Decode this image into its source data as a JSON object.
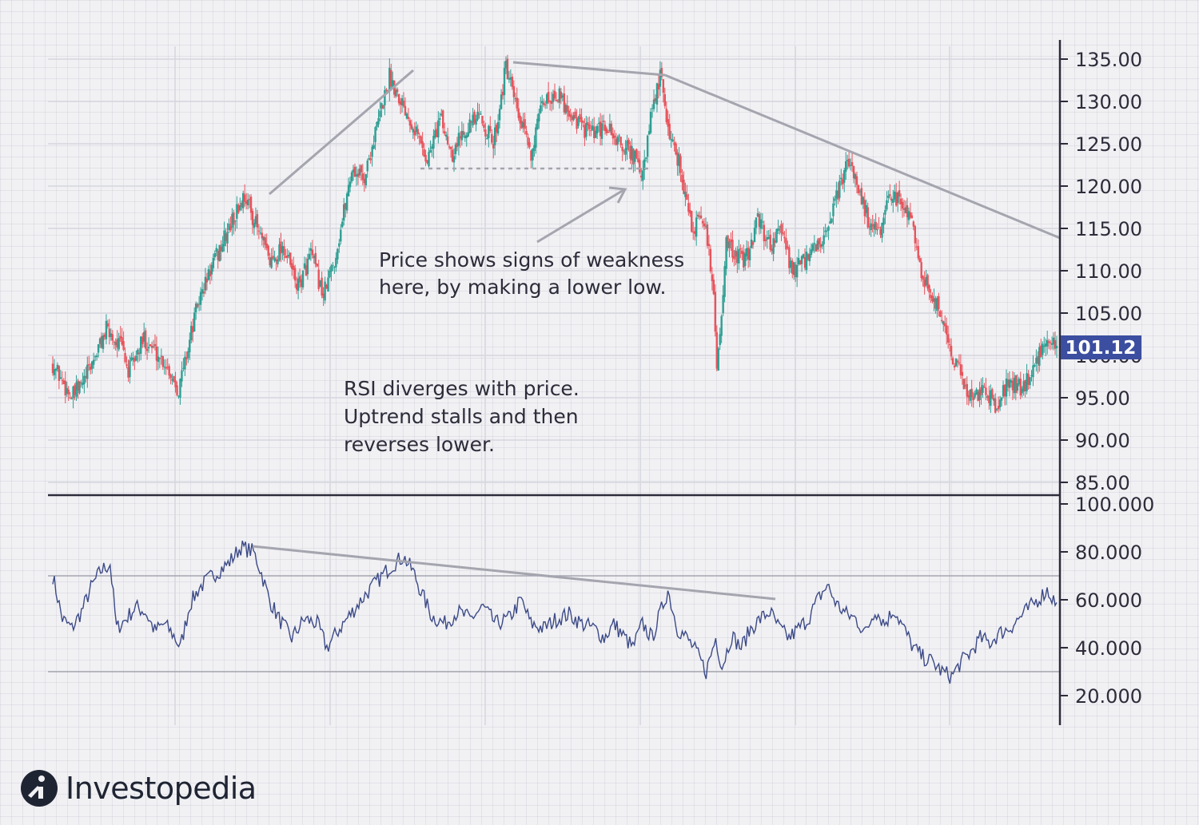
{
  "chart_data": [
    {
      "type": "candlestick",
      "panel": "price",
      "y_ticks": [
        "135.00",
        "130.00",
        "125.00",
        "120.00",
        "115.00",
        "110.00",
        "105.00",
        "100.00",
        "95.00",
        "90.00",
        "85.00"
      ],
      "ylim": [
        83,
        137
      ],
      "last_price_label": "101.12",
      "last_price": 101.12,
      "grid": true,
      "up_color": "#2e9e93",
      "down_color": "#e8535b",
      "series_points": [
        [
          0,
          99
        ],
        [
          12,
          95
        ],
        [
          20,
          97
        ],
        [
          34,
          103
        ],
        [
          44,
          101
        ],
        [
          48,
          98
        ],
        [
          58,
          102
        ],
        [
          72,
          99
        ],
        [
          80,
          96
        ],
        [
          92,
          106
        ],
        [
          100,
          110
        ],
        [
          112,
          115
        ],
        [
          122,
          119
        ],
        [
          130,
          115
        ],
        [
          138,
          111
        ],
        [
          146,
          113
        ],
        [
          156,
          108
        ],
        [
          164,
          112
        ],
        [
          172,
          107
        ],
        [
          180,
          112
        ],
        [
          190,
          122
        ],
        [
          198,
          121
        ],
        [
          206,
          127
        ],
        [
          214,
          133
        ],
        [
          222,
          130
        ],
        [
          230,
          127
        ],
        [
          238,
          123
        ],
        [
          246,
          128
        ],
        [
          254,
          124
        ],
        [
          262,
          127
        ],
        [
          272,
          128
        ],
        [
          280,
          125
        ],
        [
          288,
          134
        ],
        [
          296,
          128
        ],
        [
          304,
          124
        ],
        [
          312,
          130
        ],
        [
          320,
          131
        ],
        [
          328,
          129
        ],
        [
          336,
          127
        ],
        [
          344,
          126
        ],
        [
          352,
          127
        ],
        [
          360,
          125
        ],
        [
          368,
          124
        ],
        [
          375,
          121
        ],
        [
          380,
          128
        ],
        [
          386,
          133
        ],
        [
          392,
          126
        ],
        [
          398,
          123
        ],
        [
          406,
          115
        ],
        [
          414,
          116
        ],
        [
          420,
          108
        ],
        [
          422,
          98
        ],
        [
          428,
          113
        ],
        [
          434,
          112
        ],
        [
          440,
          111
        ],
        [
          448,
          116
        ],
        [
          456,
          113
        ],
        [
          462,
          115
        ],
        [
          470,
          110
        ],
        [
          478,
          111
        ],
        [
          486,
          113
        ],
        [
          492,
          114
        ],
        [
          500,
          120
        ],
        [
          506,
          123
        ],
        [
          512,
          120
        ],
        [
          518,
          116
        ],
        [
          526,
          114
        ],
        [
          532,
          119
        ],
        [
          540,
          118
        ],
        [
          546,
          116
        ],
        [
          552,
          110
        ],
        [
          558,
          107
        ],
        [
          564,
          105
        ],
        [
          572,
          100
        ],
        [
          578,
          97
        ],
        [
          584,
          95
        ],
        [
          592,
          96
        ],
        [
          600,
          94
        ],
        [
          608,
          97
        ],
        [
          616,
          96
        ],
        [
          624,
          99
        ],
        [
          632,
          102
        ],
        [
          638,
          101
        ]
      ],
      "trendlines": [
        "rising peaks",
        "lower highs"
      ],
      "annotations": [
        {
          "text": [
            "Price shows signs of weakness",
            "here, by making a lower low."
          ]
        },
        {
          "text": [
            "RSI diverges with price.",
            "Uptrend stalls and then",
            "reverses lower."
          ]
        }
      ]
    },
    {
      "type": "line",
      "panel": "rsi",
      "y_ticks": [
        "100.000",
        "80.000",
        "60.000",
        "40.000",
        "20.000"
      ],
      "ylim": [
        12,
        100
      ],
      "overbought": 70,
      "oversold": 30,
      "line_color": "#3c4a86",
      "series_points": [
        [
          0,
          70
        ],
        [
          6,
          52
        ],
        [
          12,
          48
        ],
        [
          18,
          55
        ],
        [
          24,
          65
        ],
        [
          30,
          72
        ],
        [
          36,
          75
        ],
        [
          40,
          48
        ],
        [
          46,
          52
        ],
        [
          52,
          57
        ],
        [
          58,
          55
        ],
        [
          64,
          47
        ],
        [
          70,
          50
        ],
        [
          76,
          45
        ],
        [
          80,
          40
        ],
        [
          86,
          58
        ],
        [
          92,
          65
        ],
        [
          100,
          70
        ],
        [
          110,
          75
        ],
        [
          118,
          82
        ],
        [
          126,
          80
        ],
        [
          130,
          73
        ],
        [
          136,
          60
        ],
        [
          142,
          52
        ],
        [
          150,
          44
        ],
        [
          158,
          52
        ],
        [
          166,
          50
        ],
        [
          172,
          40
        ],
        [
          180,
          48
        ],
        [
          188,
          55
        ],
        [
          196,
          62
        ],
        [
          204,
          68
        ],
        [
          212,
          74
        ],
        [
          220,
          78
        ],
        [
          226,
          72
        ],
        [
          232,
          62
        ],
        [
          238,
          53
        ],
        [
          246,
          50
        ],
        [
          254,
          55
        ],
        [
          262,
          52
        ],
        [
          270,
          57
        ],
        [
          278,
          50
        ],
        [
          286,
          52
        ],
        [
          294,
          60
        ],
        [
          300,
          50
        ],
        [
          308,
          48
        ],
        [
          316,
          52
        ],
        [
          324,
          54
        ],
        [
          332,
          50
        ],
        [
          340,
          48
        ],
        [
          346,
          44
        ],
        [
          352,
          50
        ],
        [
          358,
          45
        ],
        [
          364,
          40
        ],
        [
          370,
          50
        ],
        [
          376,
          44
        ],
        [
          380,
          52
        ],
        [
          386,
          64
        ],
        [
          392,
          48
        ],
        [
          398,
          44
        ],
        [
          404,
          38
        ],
        [
          410,
          30
        ],
        [
          416,
          44
        ],
        [
          420,
          32
        ],
        [
          426,
          45
        ],
        [
          432,
          40
        ],
        [
          438,
          48
        ],
        [
          444,
          52
        ],
        [
          450,
          55
        ],
        [
          456,
          48
        ],
        [
          462,
          44
        ],
        [
          468,
          48
        ],
        [
          474,
          52
        ],
        [
          480,
          60
        ],
        [
          486,
          66
        ],
        [
          492,
          58
        ],
        [
          498,
          54
        ],
        [
          504,
          52
        ],
        [
          510,
          46
        ],
        [
          516,
          56
        ],
        [
          522,
          50
        ],
        [
          528,
          56
        ],
        [
          534,
          48
        ],
        [
          540,
          40
        ],
        [
          546,
          36
        ],
        [
          552,
          34
        ],
        [
          558,
          30
        ],
        [
          564,
          28
        ],
        [
          570,
          34
        ],
        [
          576,
          38
        ],
        [
          582,
          44
        ],
        [
          588,
          42
        ],
        [
          594,
          46
        ],
        [
          600,
          48
        ],
        [
          606,
          52
        ],
        [
          612,
          56
        ],
        [
          618,
          60
        ],
        [
          624,
          64
        ],
        [
          630,
          58
        ]
      ],
      "trendlines": [
        "descending RSI highs"
      ]
    }
  ],
  "brand": {
    "name": "Investopedia"
  }
}
